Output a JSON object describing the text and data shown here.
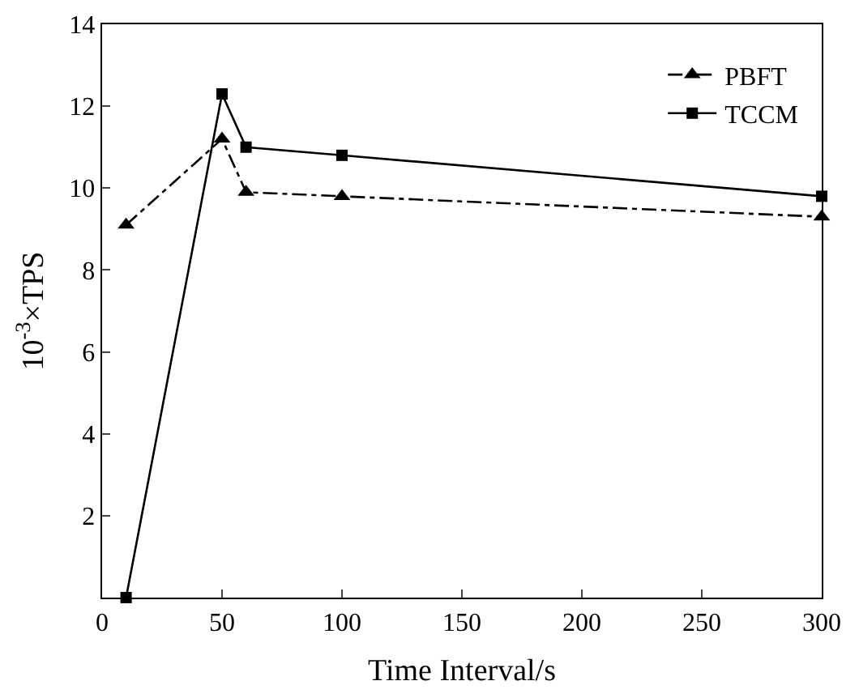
{
  "chart_data": {
    "type": "line",
    "xlabel": "Time Interval/s",
    "ylabel": "10$^{-3}$×TPS",
    "x": [
      10,
      50,
      60,
      100,
      300
    ],
    "series": [
      {
        "name": "PBFT",
        "color": "#000000",
        "values": [
          9.1,
          11.2,
          9.9,
          9.8,
          9.3
        ],
        "marker": "triangle",
        "line_style": "dashed"
      },
      {
        "name": "TCCM",
        "color": "#000000",
        "values": [
          0,
          12.3,
          11.0,
          10.8,
          9.8
        ],
        "marker": "square",
        "line_style": "solid"
      }
    ],
    "xlim": [
      0,
      300
    ],
    "xticks": [
      0,
      50,
      100,
      150,
      200,
      250,
      300
    ],
    "ylim": [
      0,
      14
    ],
    "yticks": [
      2,
      4,
      6,
      8,
      10,
      12,
      14
    ],
    "legend": "top right"
  }
}
